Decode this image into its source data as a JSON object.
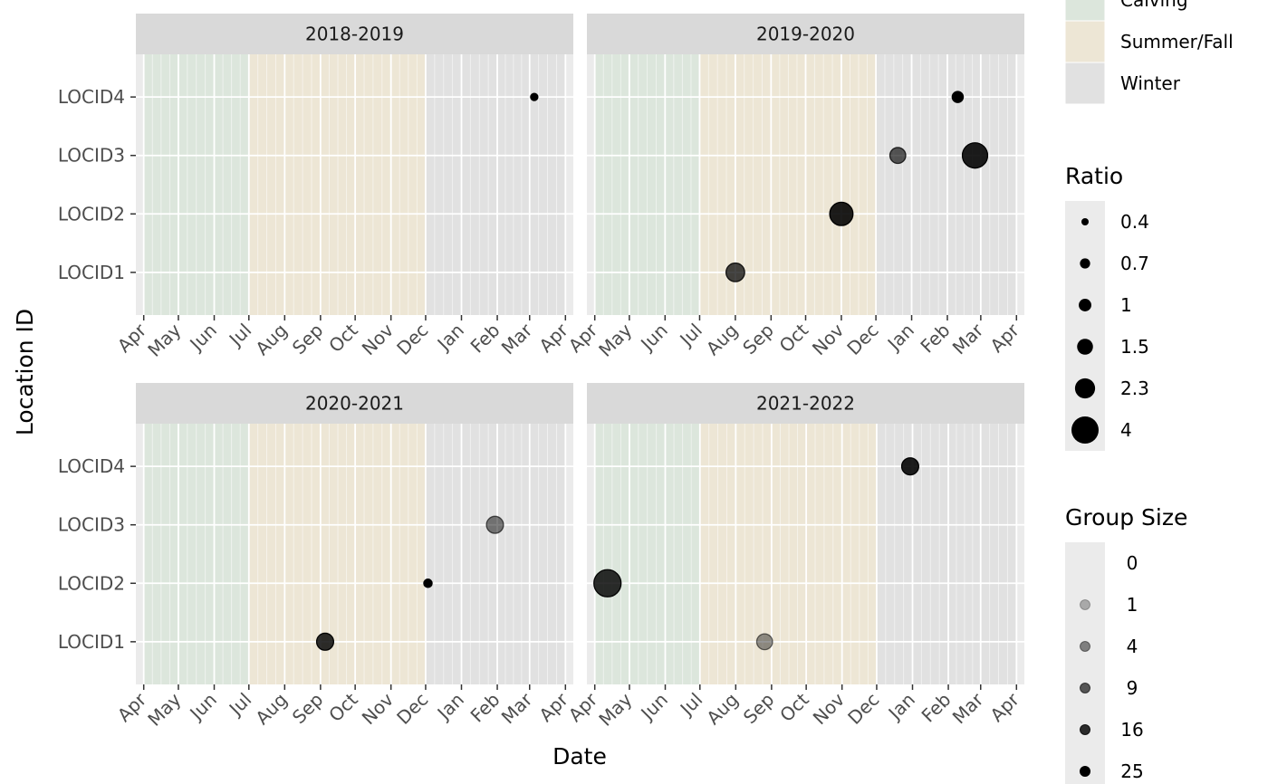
{
  "chart_data": {
    "type": "scatter",
    "xlabel": "Date",
    "ylabel": "Location ID",
    "month_ticks": [
      "Apr",
      "May",
      "Jun",
      "Jul",
      "Aug",
      "Sep",
      "Oct",
      "Nov",
      "Dec",
      "Jan",
      "Feb",
      "Mar",
      "Apr"
    ],
    "locations": [
      "LOCID1",
      "LOCID2",
      "LOCID3",
      "LOCID4"
    ],
    "grid": true,
    "seasons": [
      {
        "name": "Calving",
        "start": "04-01",
        "end": "07-01",
        "color": "#dce6dc"
      },
      {
        "name": "Summer/Fall",
        "start": "07-01",
        "end": "12-01",
        "color": "#ede6d5"
      },
      {
        "name": "Winter",
        "start": "12-01",
        "end": "04-01",
        "color": "#e1e1e1"
      }
    ],
    "panels": [
      {
        "title": "2018-2019",
        "start_date": "2018-04-01",
        "end_date": "2019-04-01",
        "points": [
          {
            "date": "2019-03-05",
            "location": "LOCID4",
            "ratio": 0.4,
            "group_size": 25
          }
        ]
      },
      {
        "title": "2019-2020",
        "start_date": "2019-04-01",
        "end_date": "2020-04-01",
        "points": [
          {
            "date": "2019-08-01",
            "location": "LOCID1",
            "ratio": 2.0,
            "group_size": 12
          },
          {
            "date": "2019-11-01",
            "location": "LOCID2",
            "ratio": 3.0,
            "group_size": 19
          },
          {
            "date": "2019-12-20",
            "location": "LOCID3",
            "ratio": 1.5,
            "group_size": 9
          },
          {
            "date": "2020-02-10",
            "location": "LOCID4",
            "ratio": 0.8,
            "group_size": 25
          },
          {
            "date": "2020-02-25",
            "location": "LOCID3",
            "ratio": 3.5,
            "group_size": 19
          }
        ]
      },
      {
        "title": "2020-2021",
        "start_date": "2020-04-01",
        "end_date": "2021-04-01",
        "points": [
          {
            "date": "2020-09-05",
            "location": "LOCID1",
            "ratio": 1.7,
            "group_size": 16
          },
          {
            "date": "2020-12-03",
            "location": "LOCID2",
            "ratio": 0.5,
            "group_size": 25
          },
          {
            "date": "2021-01-30",
            "location": "LOCID3",
            "ratio": 1.7,
            "group_size": 5
          }
        ]
      },
      {
        "title": "2021-2022",
        "start_date": "2021-04-01",
        "end_date": "2022-04-01",
        "points": [
          {
            "date": "2021-04-12",
            "location": "LOCID2",
            "ratio": 4.0,
            "group_size": 16
          },
          {
            "date": "2021-08-26",
            "location": "LOCID1",
            "ratio": 1.5,
            "group_size": 3
          },
          {
            "date": "2021-12-30",
            "location": "LOCID4",
            "ratio": 1.7,
            "group_size": 19
          }
        ]
      }
    ],
    "legends": [
      {
        "title": "",
        "type": "fill",
        "items": [
          "Calving",
          "Summer/Fall",
          "Winter"
        ]
      },
      {
        "title": "Ratio",
        "type": "size",
        "items": [
          0.4,
          0.7,
          1,
          1.5,
          2.3,
          4
        ],
        "labels": [
          "0.4",
          "0.7",
          "1",
          "1.5",
          "2.3",
          "4"
        ]
      },
      {
        "title": "Group Size",
        "type": "alpha",
        "items": [
          0,
          1,
          4,
          9,
          16,
          25
        ],
        "labels": [
          "0",
          "1",
          "4",
          "9",
          "16",
          "25"
        ]
      }
    ],
    "legend_position": "right"
  }
}
